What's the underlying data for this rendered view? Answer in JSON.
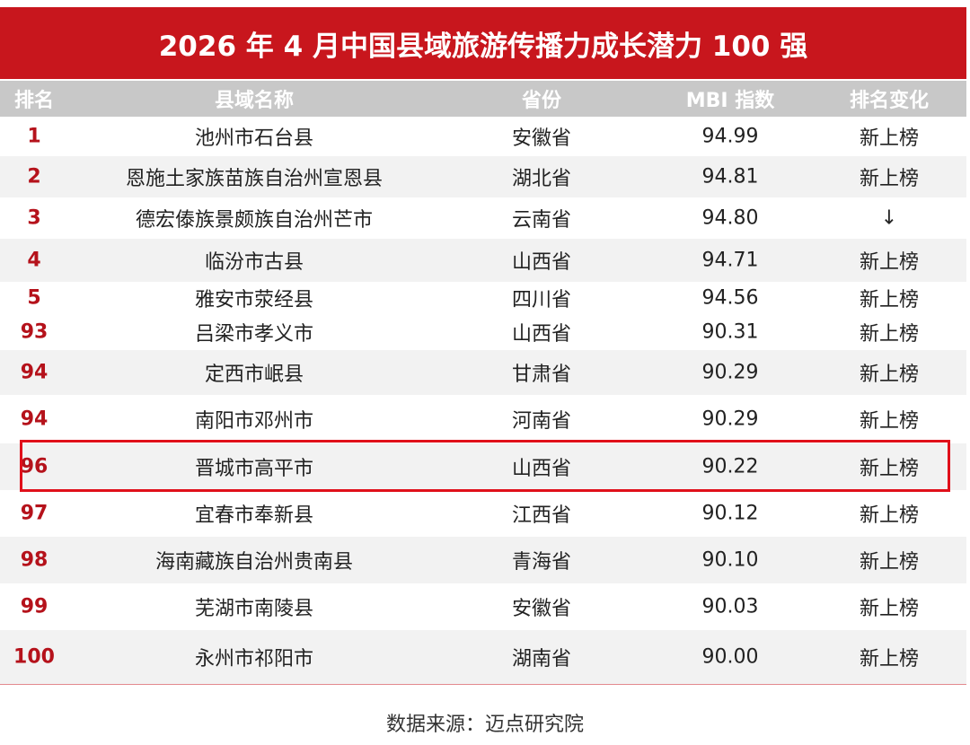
{
  "title": "2026 年 4 月中国县域旅游传播力成长潜力 100 强",
  "table": {
    "header": [
      "排名",
      "县域名称",
      "省份",
      "MBI 指数",
      "排名变化"
    ],
    "rows": [
      [
        "1",
        "池州市石台县",
        "安徽省",
        "94.99",
        "新上榜"
      ],
      [
        "2",
        "恩施土家族苗族自治州宣恩县",
        "湖北省",
        "94.81",
        "新上榜"
      ],
      [
        "3",
        "德宏傣族景颇族自治州芒市",
        "云南省",
        "94.80",
        "↓"
      ],
      [
        "4",
        "临汾市古县",
        "山西省",
        "94.71",
        "新上榜"
      ],
      [
        "5",
        "雅安市荥经县",
        "四川省",
        "94.56",
        "新上榜"
      ],
      [
        "93",
        "吕梁市孝义市",
        "山西省",
        "90.31",
        "新上榜"
      ],
      [
        "94",
        "定西市岷县",
        "甘肃省",
        "90.29",
        "新上榜"
      ],
      [
        "94",
        "南阳市邓州市",
        "河南省",
        "90.29",
        "新上榜"
      ],
      [
        "96",
        "晋城市高平市",
        "山西省",
        "90.22",
        "新上榜"
      ],
      [
        "97",
        "宜春市奉新县",
        "江西省",
        "90.12",
        "新上榜"
      ],
      [
        "98",
        "海南藏族自治州贵南县",
        "青海省",
        "90.10",
        "新上榜"
      ],
      [
        "99",
        "芜湖市南陵县",
        "安徽省",
        "90.03",
        "新上榜"
      ],
      [
        "100",
        "永州市祁阳市",
        "湖南省",
        "90.00",
        "新上榜"
      ]
    ]
  },
  "source": "数据来源：迈点研究院"
}
